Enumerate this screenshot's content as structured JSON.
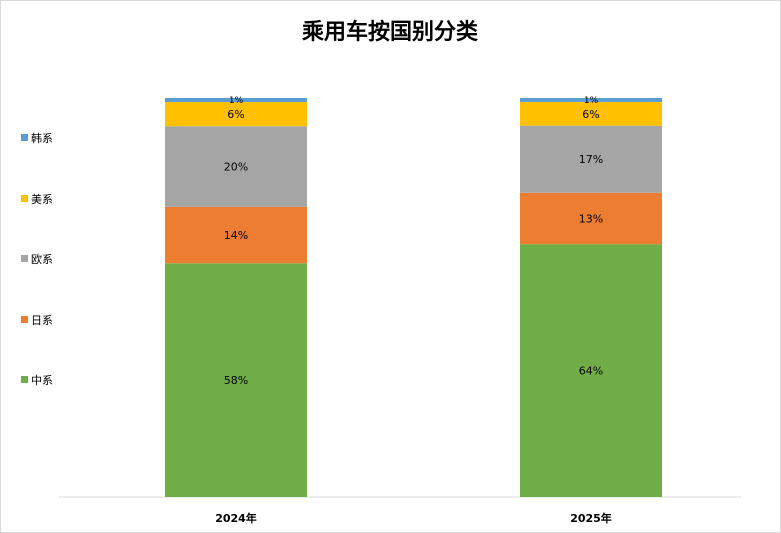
{
  "chart_data": {
    "type": "bar",
    "stacked": true,
    "title": "乘用车按国别分类",
    "categories": [
      "2024年",
      "2025年"
    ],
    "series": [
      {
        "name": "中系",
        "color": "#70AD47",
        "values": [
          58,
          64
        ],
        "labels": [
          "58%",
          "64%"
        ]
      },
      {
        "name": "日系",
        "color": "#ED7D31",
        "values": [
          14,
          13
        ],
        "labels": [
          "14%",
          "13%"
        ]
      },
      {
        "name": "欧系",
        "color": "#A5A5A5",
        "values": [
          20,
          17
        ],
        "labels": [
          "20%",
          "17%"
        ]
      },
      {
        "name": "美系",
        "color": "#FFC000",
        "values": [
          6,
          6
        ],
        "labels": [
          "6%",
          "6%"
        ]
      },
      {
        "name": "韩系",
        "color": "#5B9BD5",
        "values": [
          1,
          1
        ],
        "labels": [
          "1%",
          "1%"
        ]
      }
    ],
    "ylim": [
      0,
      100
    ],
    "legend_position": "left",
    "legend_order": [
      "韩系",
      "美系",
      "欧系",
      "日系",
      "中系"
    ],
    "grid": false
  }
}
